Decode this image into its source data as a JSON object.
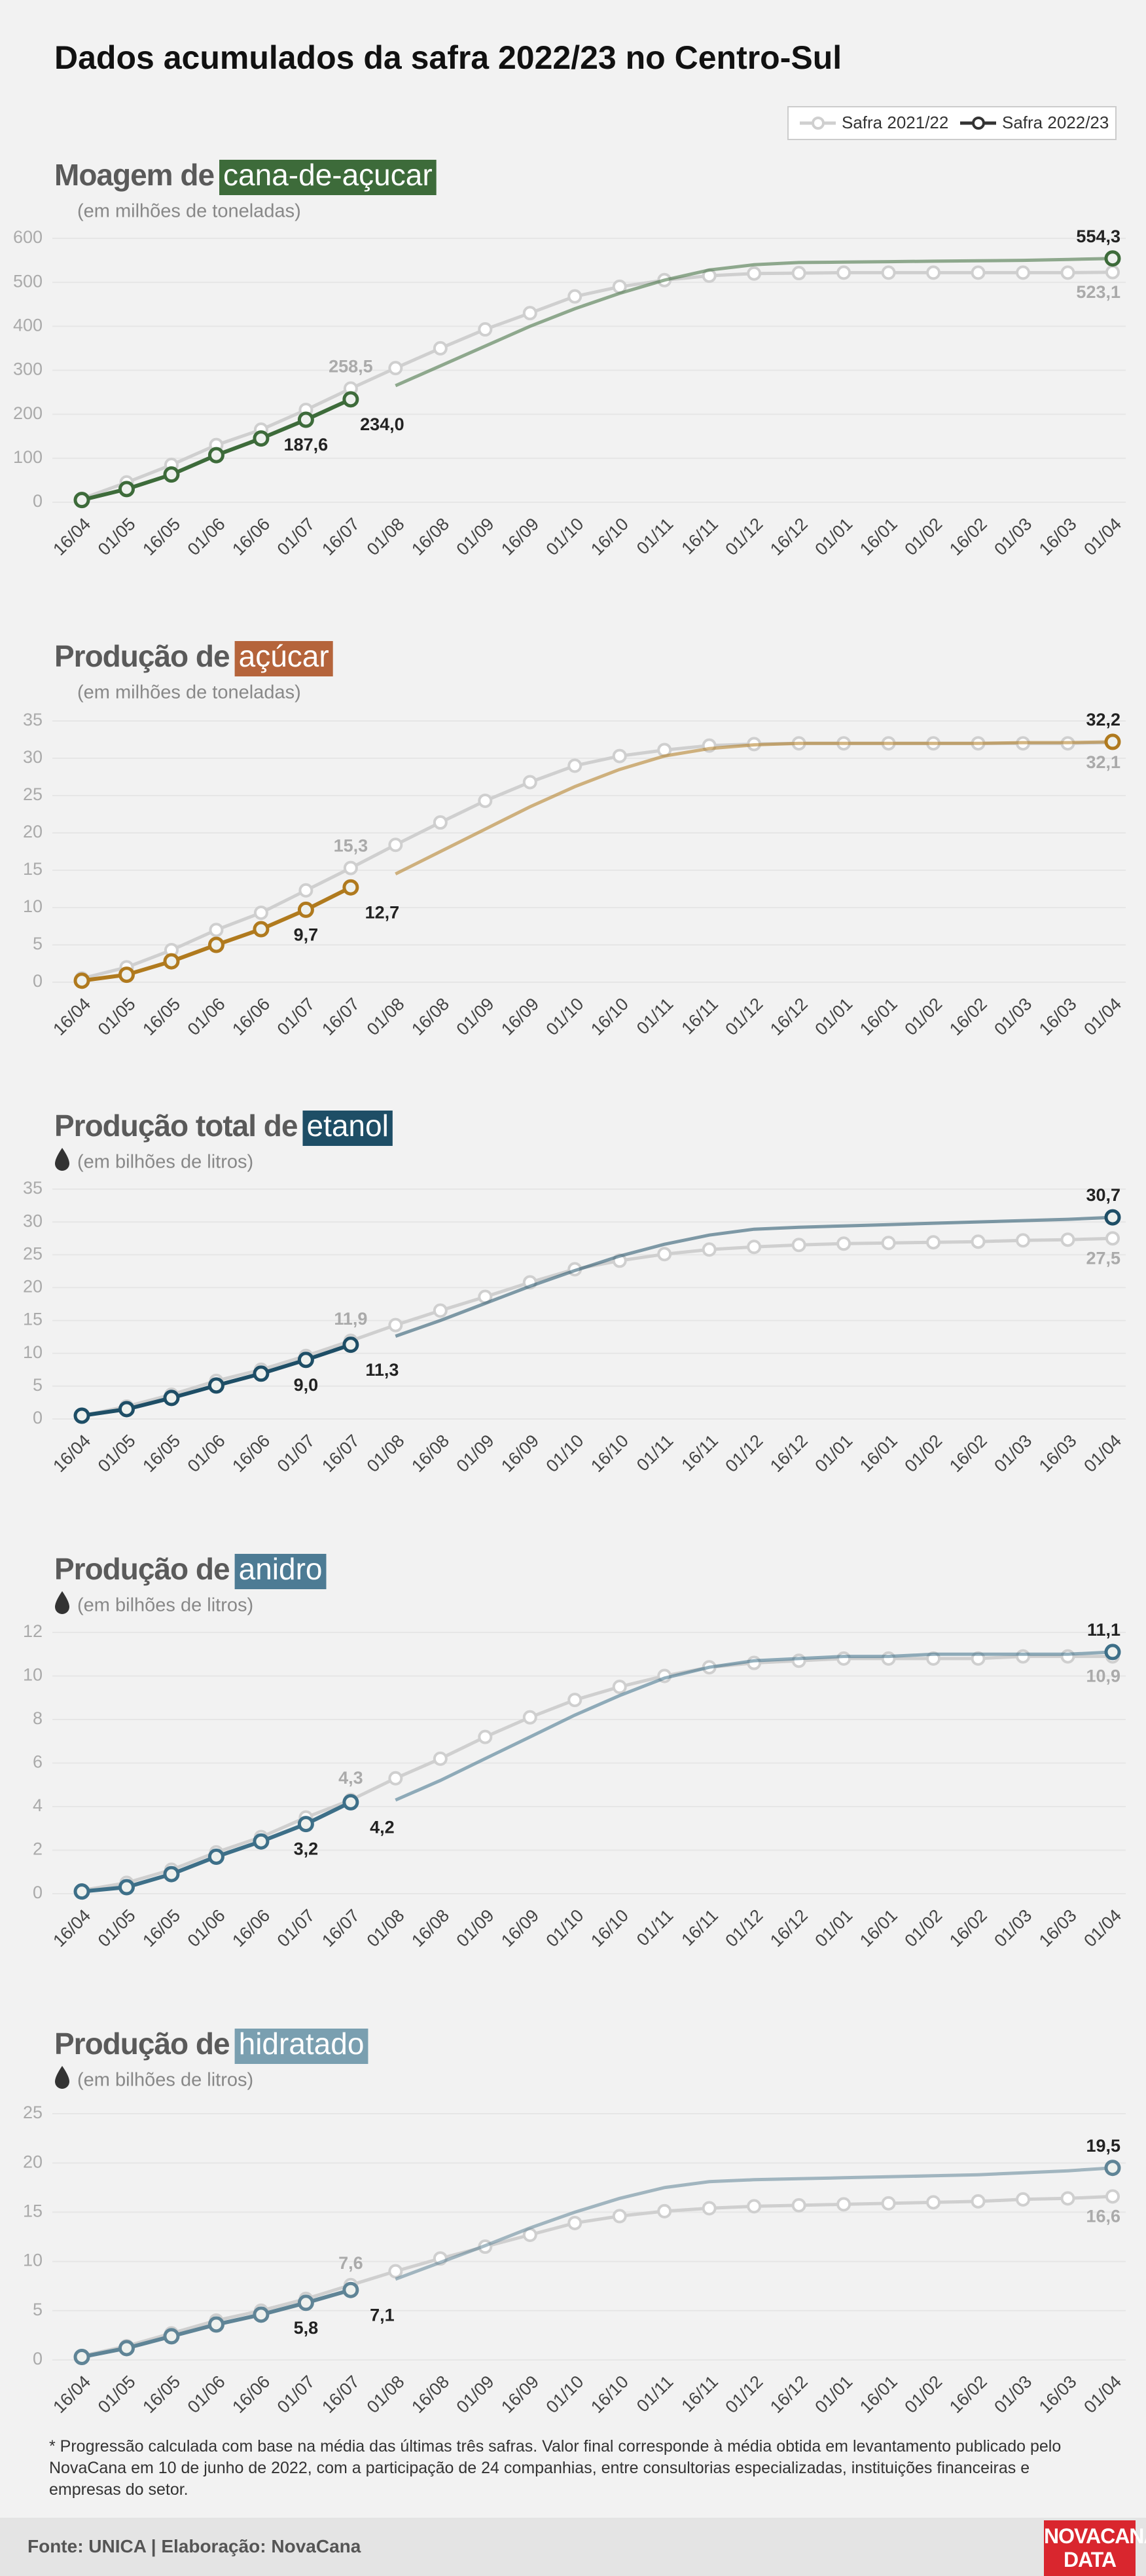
{
  "title": "Dados acumulados da safra 2022/23 no Centro-Sul",
  "chart_data": [
    {
      "type": "line",
      "title": "Moagem de",
      "title_highlight": "cana-de-açucar",
      "highlight_color": "#3d6b3a",
      "subtitle": "(em milhões de toneladas)",
      "categories": [
        "16/04",
        "01/05",
        "16/05",
        "01/06",
        "16/06",
        "01/07",
        "16/07",
        "01/08",
        "16/08",
        "01/09",
        "16/09",
        "01/10",
        "16/10",
        "01/11",
        "16/11",
        "01/12",
        "16/12",
        "01/01",
        "16/01",
        "01/02",
        "16/02",
        "01/03",
        "16/03",
        "01/04"
      ],
      "ylim": [
        0,
        600
      ],
      "yticks": [
        0,
        100,
        200,
        300,
        400,
        500,
        600
      ],
      "grid": true,
      "series": [
        {
          "name": "Safra 2021/22",
          "color": "#cfcfcf",
          "values": [
            8,
            45,
            85,
            130,
            165,
            210,
            258.5,
            305,
            350,
            393,
            430,
            468,
            490,
            505,
            515,
            520,
            521,
            522,
            522,
            522,
            522,
            522,
            522,
            523.1
          ],
          "value_labels": [
            null,
            null,
            null,
            null,
            null,
            null,
            "258,5",
            null,
            null,
            null,
            null,
            null,
            null,
            null,
            null,
            null,
            null,
            null,
            null,
            null,
            null,
            null,
            null,
            "523,1"
          ]
        },
        {
          "name": "Safra 2022/23",
          "color": "#3d6b3a",
          "values": [
            5,
            30,
            63,
            107,
            145,
            187.6,
            234.0,
            265,
            310,
            355,
            400,
            440,
            475,
            505,
            528,
            540,
            545,
            546,
            547,
            548,
            549,
            550,
            552,
            554.3
          ],
          "value_labels": [
            null,
            null,
            null,
            null,
            null,
            "187,6",
            "234,0",
            null,
            null,
            null,
            null,
            null,
            null,
            null,
            null,
            null,
            null,
            null,
            null,
            null,
            null,
            null,
            null,
            "554,3"
          ]
        }
      ]
    },
    {
      "type": "line",
      "title": "Produção de",
      "title_highlight": "açúcar",
      "highlight_color": "#b5643b",
      "subtitle": "(em milhões de toneladas)",
      "categories": [
        "16/04",
        "01/05",
        "16/05",
        "01/06",
        "16/06",
        "01/07",
        "16/07",
        "01/08",
        "16/08",
        "01/09",
        "16/09",
        "01/10",
        "16/10",
        "01/11",
        "16/11",
        "01/12",
        "16/12",
        "01/01",
        "16/01",
        "01/02",
        "16/02",
        "01/03",
        "16/03",
        "01/04"
      ],
      "ylim": [
        0,
        35
      ],
      "yticks": [
        0,
        5,
        10,
        15,
        20,
        25,
        30,
        35
      ],
      "grid": true,
      "series": [
        {
          "name": "Safra 2021/22",
          "color": "#cfcfcf",
          "values": [
            0.5,
            2.0,
            4.3,
            7.0,
            9.3,
            12.3,
            15.3,
            18.4,
            21.4,
            24.3,
            26.8,
            29.0,
            30.3,
            31.1,
            31.7,
            31.9,
            32.0,
            32.0,
            32.0,
            32.0,
            32.0,
            32.0,
            32.0,
            32.1
          ],
          "value_labels": [
            null,
            null,
            null,
            null,
            null,
            null,
            "15,3",
            null,
            null,
            null,
            null,
            null,
            null,
            null,
            null,
            null,
            null,
            null,
            null,
            null,
            null,
            null,
            null,
            "32,1"
          ]
        },
        {
          "name": "Safra 2022/23",
          "color": "#b07a1e",
          "values": [
            0.2,
            1.0,
            2.8,
            5.0,
            7.1,
            9.7,
            12.7,
            14.5,
            17.5,
            20.5,
            23.5,
            26.2,
            28.5,
            30.3,
            31.3,
            31.8,
            32.0,
            32.0,
            32.0,
            32.0,
            32.0,
            32.1,
            32.1,
            32.2
          ],
          "value_labels": [
            null,
            null,
            null,
            null,
            null,
            "9,7",
            "12,7",
            null,
            null,
            null,
            null,
            null,
            null,
            null,
            null,
            null,
            null,
            null,
            null,
            null,
            null,
            null,
            null,
            "32,2"
          ]
        }
      ]
    },
    {
      "type": "line",
      "title": "Produção total de",
      "title_highlight": "etanol",
      "highlight_color": "#1e4e66",
      "subtitle": "(em bilhões de litros)",
      "categories": [
        "16/04",
        "01/05",
        "16/05",
        "01/06",
        "16/06",
        "01/07",
        "16/07",
        "01/08",
        "16/08",
        "01/09",
        "16/09",
        "01/10",
        "16/10",
        "01/11",
        "16/11",
        "01/12",
        "16/12",
        "01/01",
        "16/01",
        "01/02",
        "16/02",
        "01/03",
        "16/03",
        "01/04"
      ],
      "ylim": [
        0,
        35
      ],
      "yticks": [
        0,
        5,
        10,
        15,
        20,
        25,
        30,
        35
      ],
      "grid": true,
      "series": [
        {
          "name": "Safra 2021/22",
          "color": "#cfcfcf",
          "values": [
            0.5,
            1.9,
            3.7,
            5.8,
            7.5,
            9.6,
            11.9,
            14.3,
            16.5,
            18.6,
            20.8,
            22.8,
            24.1,
            25.1,
            25.8,
            26.2,
            26.5,
            26.7,
            26.8,
            26.9,
            27.0,
            27.2,
            27.3,
            27.5
          ],
          "value_labels": [
            null,
            null,
            null,
            null,
            null,
            null,
            "11,9",
            null,
            null,
            null,
            null,
            null,
            null,
            null,
            null,
            null,
            null,
            null,
            null,
            null,
            null,
            null,
            null,
            "27,5"
          ]
        },
        {
          "name": "Safra 2022/23",
          "color": "#1e4e66",
          "values": [
            0.5,
            1.5,
            3.2,
            5.1,
            6.9,
            9.0,
            11.3,
            12.6,
            15.0,
            17.6,
            20.2,
            22.6,
            24.8,
            26.6,
            28.0,
            28.9,
            29.2,
            29.4,
            29.6,
            29.8,
            30.0,
            30.2,
            30.4,
            30.7
          ],
          "value_labels": [
            null,
            null,
            null,
            null,
            null,
            "9,0",
            "11,3",
            null,
            null,
            null,
            null,
            null,
            null,
            null,
            null,
            null,
            null,
            null,
            null,
            null,
            null,
            null,
            null,
            "30,7"
          ]
        }
      ]
    },
    {
      "type": "line",
      "title": "Produção de",
      "title_highlight": "anidro",
      "highlight_color": "#4d7b94",
      "subtitle": "(em bilhões de litros)",
      "categories": [
        "16/04",
        "01/05",
        "16/05",
        "01/06",
        "16/06",
        "01/07",
        "16/07",
        "01/08",
        "16/08",
        "01/09",
        "16/09",
        "01/10",
        "16/10",
        "01/11",
        "16/11",
        "01/12",
        "16/12",
        "01/01",
        "16/01",
        "01/02",
        "16/02",
        "01/03",
        "16/03",
        "01/04"
      ],
      "ylim": [
        0,
        12
      ],
      "yticks": [
        0,
        2,
        4,
        6,
        8,
        10,
        12
      ],
      "grid": true,
      "series": [
        {
          "name": "Safra 2021/22",
          "color": "#cfcfcf",
          "values": [
            0.15,
            0.5,
            1.1,
            1.9,
            2.6,
            3.5,
            4.3,
            5.3,
            6.2,
            7.2,
            8.1,
            8.9,
            9.5,
            10.0,
            10.4,
            10.6,
            10.7,
            10.8,
            10.8,
            10.8,
            10.8,
            10.9,
            10.9,
            10.9
          ],
          "value_labels": [
            null,
            null,
            null,
            null,
            null,
            null,
            "4,3",
            null,
            null,
            null,
            null,
            null,
            null,
            null,
            null,
            null,
            null,
            null,
            null,
            null,
            null,
            null,
            null,
            "10,9"
          ]
        },
        {
          "name": "Safra 2022/23",
          "color": "#3d6f88",
          "values": [
            0.1,
            0.3,
            0.9,
            1.7,
            2.4,
            3.2,
            4.2,
            4.3,
            5.2,
            6.2,
            7.2,
            8.2,
            9.1,
            9.9,
            10.4,
            10.7,
            10.8,
            10.9,
            10.9,
            11.0,
            11.0,
            11.0,
            11.0,
            11.1
          ],
          "value_labels": [
            null,
            null,
            null,
            null,
            null,
            "3,2",
            "4,2",
            null,
            null,
            null,
            null,
            null,
            null,
            null,
            null,
            null,
            null,
            null,
            null,
            null,
            null,
            null,
            null,
            "11,1"
          ]
        }
      ]
    },
    {
      "type": "line",
      "title": "Produção de",
      "title_highlight": "hidratado",
      "highlight_color": "#7a9fb0",
      "subtitle": "(em bilhões de litros)",
      "categories": [
        "16/04",
        "01/05",
        "16/05",
        "01/06",
        "16/06",
        "01/07",
        "16/07",
        "01/08",
        "16/08",
        "01/09",
        "16/09",
        "01/10",
        "16/10",
        "01/11",
        "16/11",
        "01/12",
        "16/12",
        "01/01",
        "16/01",
        "01/02",
        "16/02",
        "01/03",
        "16/03",
        "01/04"
      ],
      "ylim": [
        0,
        25
      ],
      "yticks": [
        0,
        5,
        10,
        15,
        20,
        25
      ],
      "grid": true,
      "series": [
        {
          "name": "Safra 2021/22",
          "color": "#cfcfcf",
          "values": [
            0.4,
            1.4,
            2.7,
            4.0,
            5.0,
            6.2,
            7.6,
            9.0,
            10.3,
            11.5,
            12.7,
            13.9,
            14.6,
            15.1,
            15.4,
            15.6,
            15.7,
            15.8,
            15.9,
            16.0,
            16.1,
            16.3,
            16.4,
            16.6
          ],
          "value_labels": [
            null,
            null,
            null,
            null,
            null,
            null,
            "7,6",
            null,
            null,
            null,
            null,
            null,
            null,
            null,
            null,
            null,
            null,
            null,
            null,
            null,
            null,
            null,
            null,
            "16,6"
          ]
        },
        {
          "name": "Safra 2022/23",
          "color": "#5f8496",
          "values": [
            0.3,
            1.2,
            2.4,
            3.6,
            4.6,
            5.8,
            7.1,
            8.2,
            9.9,
            11.6,
            13.4,
            15.0,
            16.4,
            17.5,
            18.1,
            18.3,
            18.4,
            18.5,
            18.6,
            18.7,
            18.8,
            19.0,
            19.2,
            19.5
          ],
          "value_labels": [
            null,
            null,
            null,
            null,
            null,
            "5,8",
            "7,1",
            null,
            null,
            null,
            null,
            null,
            null,
            null,
            null,
            null,
            null,
            null,
            null,
            null,
            null,
            null,
            null,
            "19,5"
          ]
        }
      ]
    }
  ],
  "footnote": "* Progressão calculada com base na média das últimas três safras. Valor final corresponde à média obtida em levantamento publicado pelo NovaCana em 10 de junho de 2022, com a participação de 24 companhias, entre consultorias especializadas, instituições financeiras e empresas do setor.",
  "footer": {
    "source": "Fonte: UNICA | Elaboração: NovaCana",
    "logo_top": "NOVACANA",
    "logo_bottom": "DATA"
  }
}
